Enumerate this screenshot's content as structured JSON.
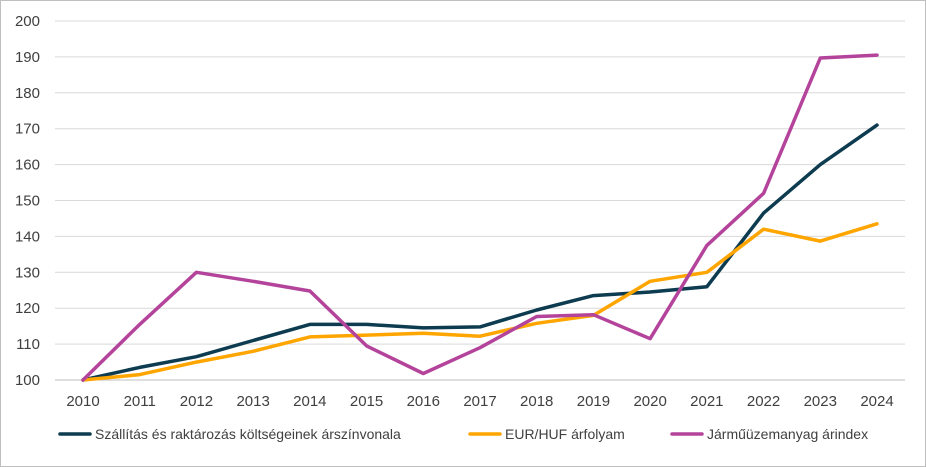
{
  "chart_data": {
    "type": "line",
    "title": "",
    "xlabel": "",
    "ylabel": "",
    "x": [
      "2010",
      "2011",
      "2012",
      "2013",
      "2014",
      "2015",
      "2016",
      "2017",
      "2018",
      "2019",
      "2020",
      "2021",
      "2022",
      "2023",
      "2024"
    ],
    "ylim": [
      100,
      200
    ],
    "yticks": [
      "100",
      "110",
      "120",
      "130",
      "140",
      "150",
      "160",
      "170",
      "180",
      "190",
      "200"
    ],
    "grid": true,
    "legend_position": "bottom",
    "series": [
      {
        "name": "Szállítás és raktározás költségeinek árszínvonala",
        "color": "#0d3b4f",
        "values": [
          100,
          103.5,
          106.5,
          111,
          115.5,
          115.5,
          114.5,
          114.8,
          119.5,
          123.5,
          124.5,
          126,
          146.5,
          160,
          171
        ]
      },
      {
        "name": "EUR/HUF árfolyam",
        "color": "#ffa500",
        "values": [
          100,
          101.5,
          105,
          108,
          112,
          112.5,
          113,
          112.2,
          115.8,
          118,
          127.5,
          130,
          142,
          138.7,
          143.5
        ]
      },
      {
        "name": "Járműüzemanyag árindex",
        "color": "#b4449b",
        "values": [
          100,
          115.5,
          130,
          127.5,
          124.8,
          109.5,
          101.8,
          109,
          117.7,
          118.2,
          111.5,
          137.5,
          152,
          189.7,
          190.5
        ]
      }
    ]
  }
}
